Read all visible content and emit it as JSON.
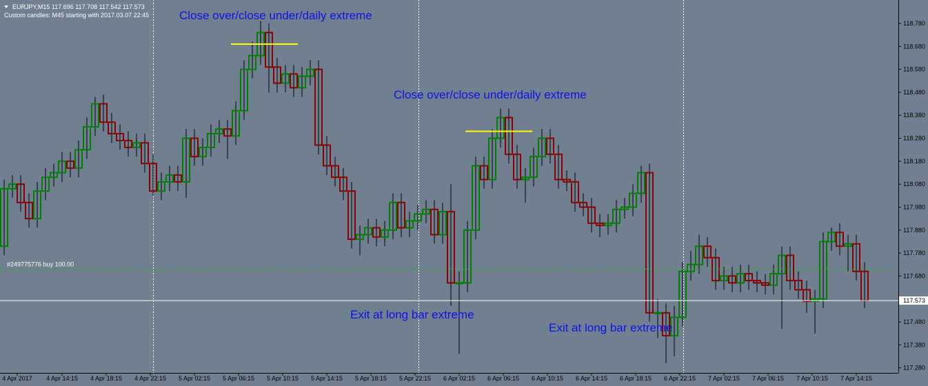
{
  "chart_data": {
    "type": "candlestick",
    "header": "EURJPY,M15  117.696 117.708 117.542 117.573",
    "subheader": "Custom candles: M45 starting with 2017.03.07 22:45",
    "annotations": [
      "Close over/close under/daily extreme",
      "Close over/close under/daily extreme",
      "Exit at long bar extreme",
      "Exit at long bar extreme"
    ],
    "levels": [
      118.69,
      118.31
    ],
    "order_label": "#249775776 buy 100.00",
    "order_level": 117.71,
    "current_price": 117.573,
    "up_color": "#008000",
    "down_color": "#8b0000",
    "level_color": "#ffff00",
    "x_labels": [
      "4 Apr 2017",
      "4 Apr 14:15",
      "4 Apr 18:15",
      "4 Apr 22:15",
      "5 Apr 02:15",
      "5 Apr 06:15",
      "5 Apr 10:15",
      "5 Apr 14:15",
      "5 Apr 18:15",
      "5 Apr 22:15",
      "6 Apr 02:15",
      "6 Apr 06:15",
      "6 Apr 10:15",
      "6 Apr 14:15",
      "6 Apr 18:15",
      "6 Apr 22:15",
      "7 Apr 02:15",
      "7 Apr 06:15",
      "7 Apr 10:15",
      "7 Apr 14:15"
    ],
    "ylim": [
      117.258,
      118.882
    ],
    "yticks": [
      {
        "value": 118.78,
        "label": "118.780"
      },
      {
        "value": 118.68,
        "label": "118.680"
      },
      {
        "value": 118.58,
        "label": "118.580"
      },
      {
        "value": 118.48,
        "label": "118.480"
      },
      {
        "value": 118.38,
        "label": "118.380"
      },
      {
        "value": 118.28,
        "label": "118.280"
      },
      {
        "value": 118.18,
        "label": "118.180"
      },
      {
        "value": 118.08,
        "label": "118.080"
      },
      {
        "value": 117.98,
        "label": "117.980"
      },
      {
        "value": 117.88,
        "label": "117.880"
      },
      {
        "value": 117.78,
        "label": "117.780"
      },
      {
        "value": 117.68,
        "label": "117.680"
      },
      {
        "value": 117.58,
        "label": "117.580"
      },
      {
        "value": 117.48,
        "label": "117.480"
      },
      {
        "value": 117.38,
        "label": "117.380"
      },
      {
        "value": 117.28,
        "label": "117.280"
      }
    ],
    "open": [
      117.81,
      118.06,
      118.08,
      118.0,
      117.93,
      118.05,
      118.11,
      118.13,
      118.18,
      118.15,
      118.23,
      118.33,
      118.43,
      118.35,
      118.3,
      118.27,
      118.24,
      118.26,
      118.17,
      118.05,
      118.09,
      118.12,
      118.09,
      118.28,
      118.2,
      118.24,
      118.3,
      118.32,
      118.29,
      118.4,
      118.58,
      118.64,
      118.74,
      118.59,
      118.52,
      118.56,
      118.5,
      118.55,
      118.58,
      118.25,
      118.16,
      118.11,
      118.05,
      117.84,
      117.86,
      117.89,
      117.85,
      117.88,
      118.0,
      117.89,
      117.92,
      117.95,
      117.97,
      117.86,
      117.96,
      117.65,
      117.65,
      117.88,
      118.16,
      118.1,
      118.28,
      118.37,
      118.21,
      118.1,
      118.11,
      118.2,
      118.28,
      118.21,
      118.1,
      118.09,
      118.0,
      117.98,
      117.91,
      117.9,
      117.91,
      117.97,
      117.98,
      118.04,
      118.13,
      117.52,
      117.52,
      117.42,
      117.5,
      117.7,
      117.73,
      117.81,
      117.76,
      117.66,
      117.68,
      117.65,
      117.69,
      117.66,
      117.65,
      117.64,
      117.69,
      117.77,
      117.66,
      117.62,
      117.57,
      117.58,
      117.83,
      117.87,
      117.81,
      117.82,
      117.7
    ],
    "high": [
      118.1,
      118.12,
      118.12,
      118.04,
      118.09,
      118.15,
      118.17,
      118.22,
      118.22,
      118.27,
      118.37,
      118.46,
      118.47,
      118.39,
      118.34,
      118.31,
      118.3,
      118.3,
      118.21,
      118.13,
      118.16,
      118.16,
      118.32,
      118.32,
      118.28,
      118.34,
      118.36,
      118.36,
      118.44,
      118.62,
      118.7,
      118.79,
      118.78,
      118.63,
      118.6,
      118.6,
      118.59,
      118.62,
      118.62,
      118.29,
      118.2,
      118.15,
      118.09,
      117.9,
      117.93,
      117.93,
      117.92,
      118.04,
      118.04,
      117.96,
      117.99,
      118.01,
      118.01,
      118.0,
      118.08,
      117.7,
      117.92,
      118.2,
      118.2,
      118.32,
      118.41,
      118.41,
      118.25,
      118.15,
      118.24,
      118.32,
      118.32,
      118.25,
      118.14,
      118.13,
      118.04,
      118.02,
      117.95,
      117.95,
      118.01,
      118.02,
      118.08,
      118.16,
      118.17,
      117.58,
      117.56,
      117.55,
      117.74,
      117.79,
      117.86,
      117.85,
      117.8,
      117.72,
      117.72,
      117.73,
      117.73,
      117.7,
      117.69,
      117.73,
      117.81,
      117.81,
      117.7,
      117.66,
      117.62,
      117.87,
      117.89,
      117.91,
      117.86,
      117.86,
      117.74
    ],
    "low": [
      117.77,
      118.02,
      117.96,
      117.89,
      117.89,
      118.01,
      118.07,
      118.09,
      118.11,
      118.11,
      118.19,
      118.29,
      118.31,
      118.26,
      118.23,
      118.2,
      118.2,
      118.13,
      118.03,
      118.01,
      118.05,
      118.05,
      118.02,
      118.16,
      118.16,
      118.2,
      118.26,
      118.19,
      118.25,
      118.36,
      118.54,
      118.6,
      118.48,
      118.48,
      118.48,
      118.46,
      118.46,
      118.51,
      118.21,
      118.12,
      118.07,
      118.01,
      117.8,
      117.77,
      117.82,
      117.81,
      117.81,
      117.84,
      117.85,
      117.85,
      117.88,
      117.91,
      117.82,
      117.82,
      117.55,
      117.34,
      117.61,
      117.84,
      118.06,
      118.06,
      118.24,
      118.17,
      118.06,
      118.0,
      118.07,
      118.16,
      118.17,
      118.06,
      118.05,
      117.96,
      117.94,
      117.87,
      117.85,
      117.86,
      117.87,
      117.93,
      117.94,
      118.0,
      117.48,
      117.41,
      117.3,
      117.33,
      117.46,
      117.66,
      117.69,
      117.72,
      117.62,
      117.62,
      117.61,
      117.61,
      117.62,
      117.61,
      117.6,
      117.6,
      117.45,
      117.62,
      117.58,
      117.52,
      117.43,
      117.54,
      117.79,
      117.77,
      117.7,
      117.66,
      117.54
    ],
    "close": [
      118.06,
      118.08,
      118.0,
      117.93,
      118.05,
      118.11,
      118.13,
      118.18,
      118.15,
      118.23,
      118.33,
      118.43,
      118.35,
      118.3,
      118.27,
      118.24,
      118.26,
      118.17,
      118.05,
      118.09,
      118.12,
      118.09,
      118.28,
      118.2,
      118.24,
      118.3,
      118.32,
      118.29,
      118.4,
      118.58,
      118.64,
      118.74,
      118.59,
      118.52,
      118.56,
      118.5,
      118.55,
      118.58,
      118.25,
      118.16,
      118.11,
      118.05,
      117.84,
      117.86,
      117.89,
      117.85,
      117.88,
      118.0,
      117.89,
      117.92,
      117.95,
      117.97,
      117.86,
      117.96,
      117.65,
      117.65,
      117.88,
      118.16,
      118.1,
      118.28,
      118.37,
      118.21,
      118.1,
      118.11,
      118.2,
      118.28,
      118.21,
      118.1,
      118.09,
      118.0,
      117.98,
      117.91,
      117.9,
      117.91,
      117.97,
      117.98,
      118.04,
      118.13,
      117.52,
      117.52,
      117.42,
      117.5,
      117.7,
      117.73,
      117.81,
      117.76,
      117.66,
      117.68,
      117.65,
      117.69,
      117.66,
      117.65,
      117.64,
      117.69,
      117.77,
      117.66,
      117.62,
      117.57,
      117.58,
      117.83,
      117.87,
      117.81,
      117.82,
      117.7,
      117.573
    ]
  }
}
